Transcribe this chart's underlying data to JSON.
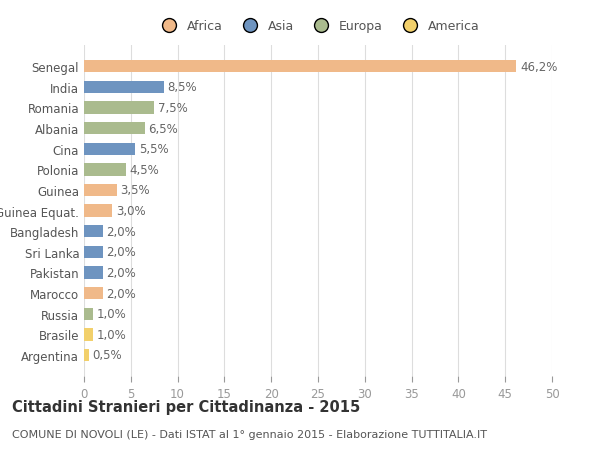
{
  "countries": [
    "Senegal",
    "India",
    "Romania",
    "Albania",
    "Cina",
    "Polonia",
    "Guinea",
    "Guinea Equat.",
    "Bangladesh",
    "Sri Lanka",
    "Pakistan",
    "Marocco",
    "Russia",
    "Brasile",
    "Argentina"
  ],
  "values": [
    46.2,
    8.5,
    7.5,
    6.5,
    5.5,
    4.5,
    3.5,
    3.0,
    2.0,
    2.0,
    2.0,
    2.0,
    1.0,
    1.0,
    0.5
  ],
  "labels": [
    "46,2%",
    "8,5%",
    "7,5%",
    "6,5%",
    "5,5%",
    "4,5%",
    "3,5%",
    "3,0%",
    "2,0%",
    "2,0%",
    "2,0%",
    "2,0%",
    "1,0%",
    "1,0%",
    "0,5%"
  ],
  "colors": [
    "#F0B989",
    "#6E94C0",
    "#AABB8E",
    "#AABB8E",
    "#6E94C0",
    "#AABB8E",
    "#F0B989",
    "#F0B989",
    "#6E94C0",
    "#6E94C0",
    "#6E94C0",
    "#F0B989",
    "#AABB8E",
    "#F2D06B",
    "#F2D06B"
  ],
  "legend_labels": [
    "Africa",
    "Asia",
    "Europa",
    "America"
  ],
  "legend_colors": [
    "#F0B989",
    "#6E94C0",
    "#AABB8E",
    "#F2D06B"
  ],
  "title": "Cittadini Stranieri per Cittadinanza - 2015",
  "subtitle": "COMUNE DI NOVOLI (LE) - Dati ISTAT al 1° gennaio 2015 - Elaborazione TUTTITALIA.IT",
  "xlim": [
    0,
    50
  ],
  "xticks": [
    0,
    5,
    10,
    15,
    20,
    25,
    30,
    35,
    40,
    45,
    50
  ],
  "bg_color": "#ffffff",
  "grid_color": "#dddddd",
  "bar_height": 0.6,
  "label_fontsize": 8.5,
  "title_fontsize": 10.5,
  "subtitle_fontsize": 8,
  "tick_fontsize": 8.5,
  "legend_fontsize": 9
}
